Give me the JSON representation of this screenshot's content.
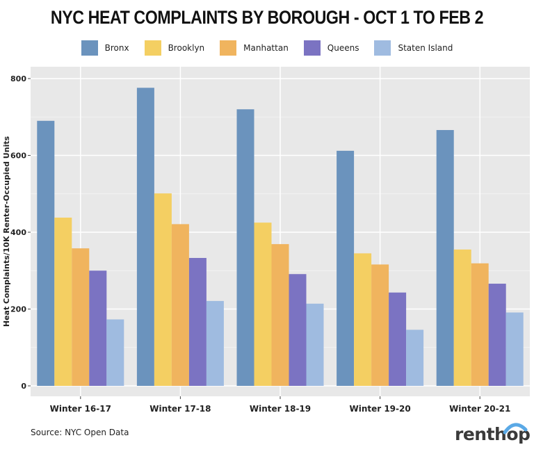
{
  "chart_data": {
    "type": "bar",
    "title": "NYC Heat Complaints by Borough - Oct 1 to Feb 2",
    "xlabel": "",
    "ylabel": "Heat Complaints/10K Renter-Occupied Units",
    "ylim": [
      0,
      800
    ],
    "yticks": [
      0,
      200,
      400,
      600,
      800
    ],
    "grid": true,
    "legend_position": "top",
    "categories": [
      "Winter 16-17",
      "Winter 17-18",
      "Winter 18-19",
      "Winter 19-20",
      "Winter 20-21"
    ],
    "series": [
      {
        "name": "Bronx",
        "color": "#6b93bd",
        "values": [
          690,
          776,
          720,
          612,
          666
        ]
      },
      {
        "name": "Brooklyn",
        "color": "#f4cf62",
        "values": [
          438,
          501,
          425,
          345,
          355
        ]
      },
      {
        "name": "Manhattan",
        "color": "#f0b45e",
        "values": [
          358,
          421,
          369,
          316,
          319
        ]
      },
      {
        "name": "Queens",
        "color": "#7b73c2",
        "values": [
          300,
          333,
          291,
          243,
          266
        ]
      },
      {
        "name": "Staten Island",
        "color": "#9fbbe0",
        "values": [
          173,
          221,
          214,
          146,
          191
        ]
      }
    ]
  },
  "footer": {
    "source": "Source: NYC Open Data",
    "brand": "renthop"
  }
}
